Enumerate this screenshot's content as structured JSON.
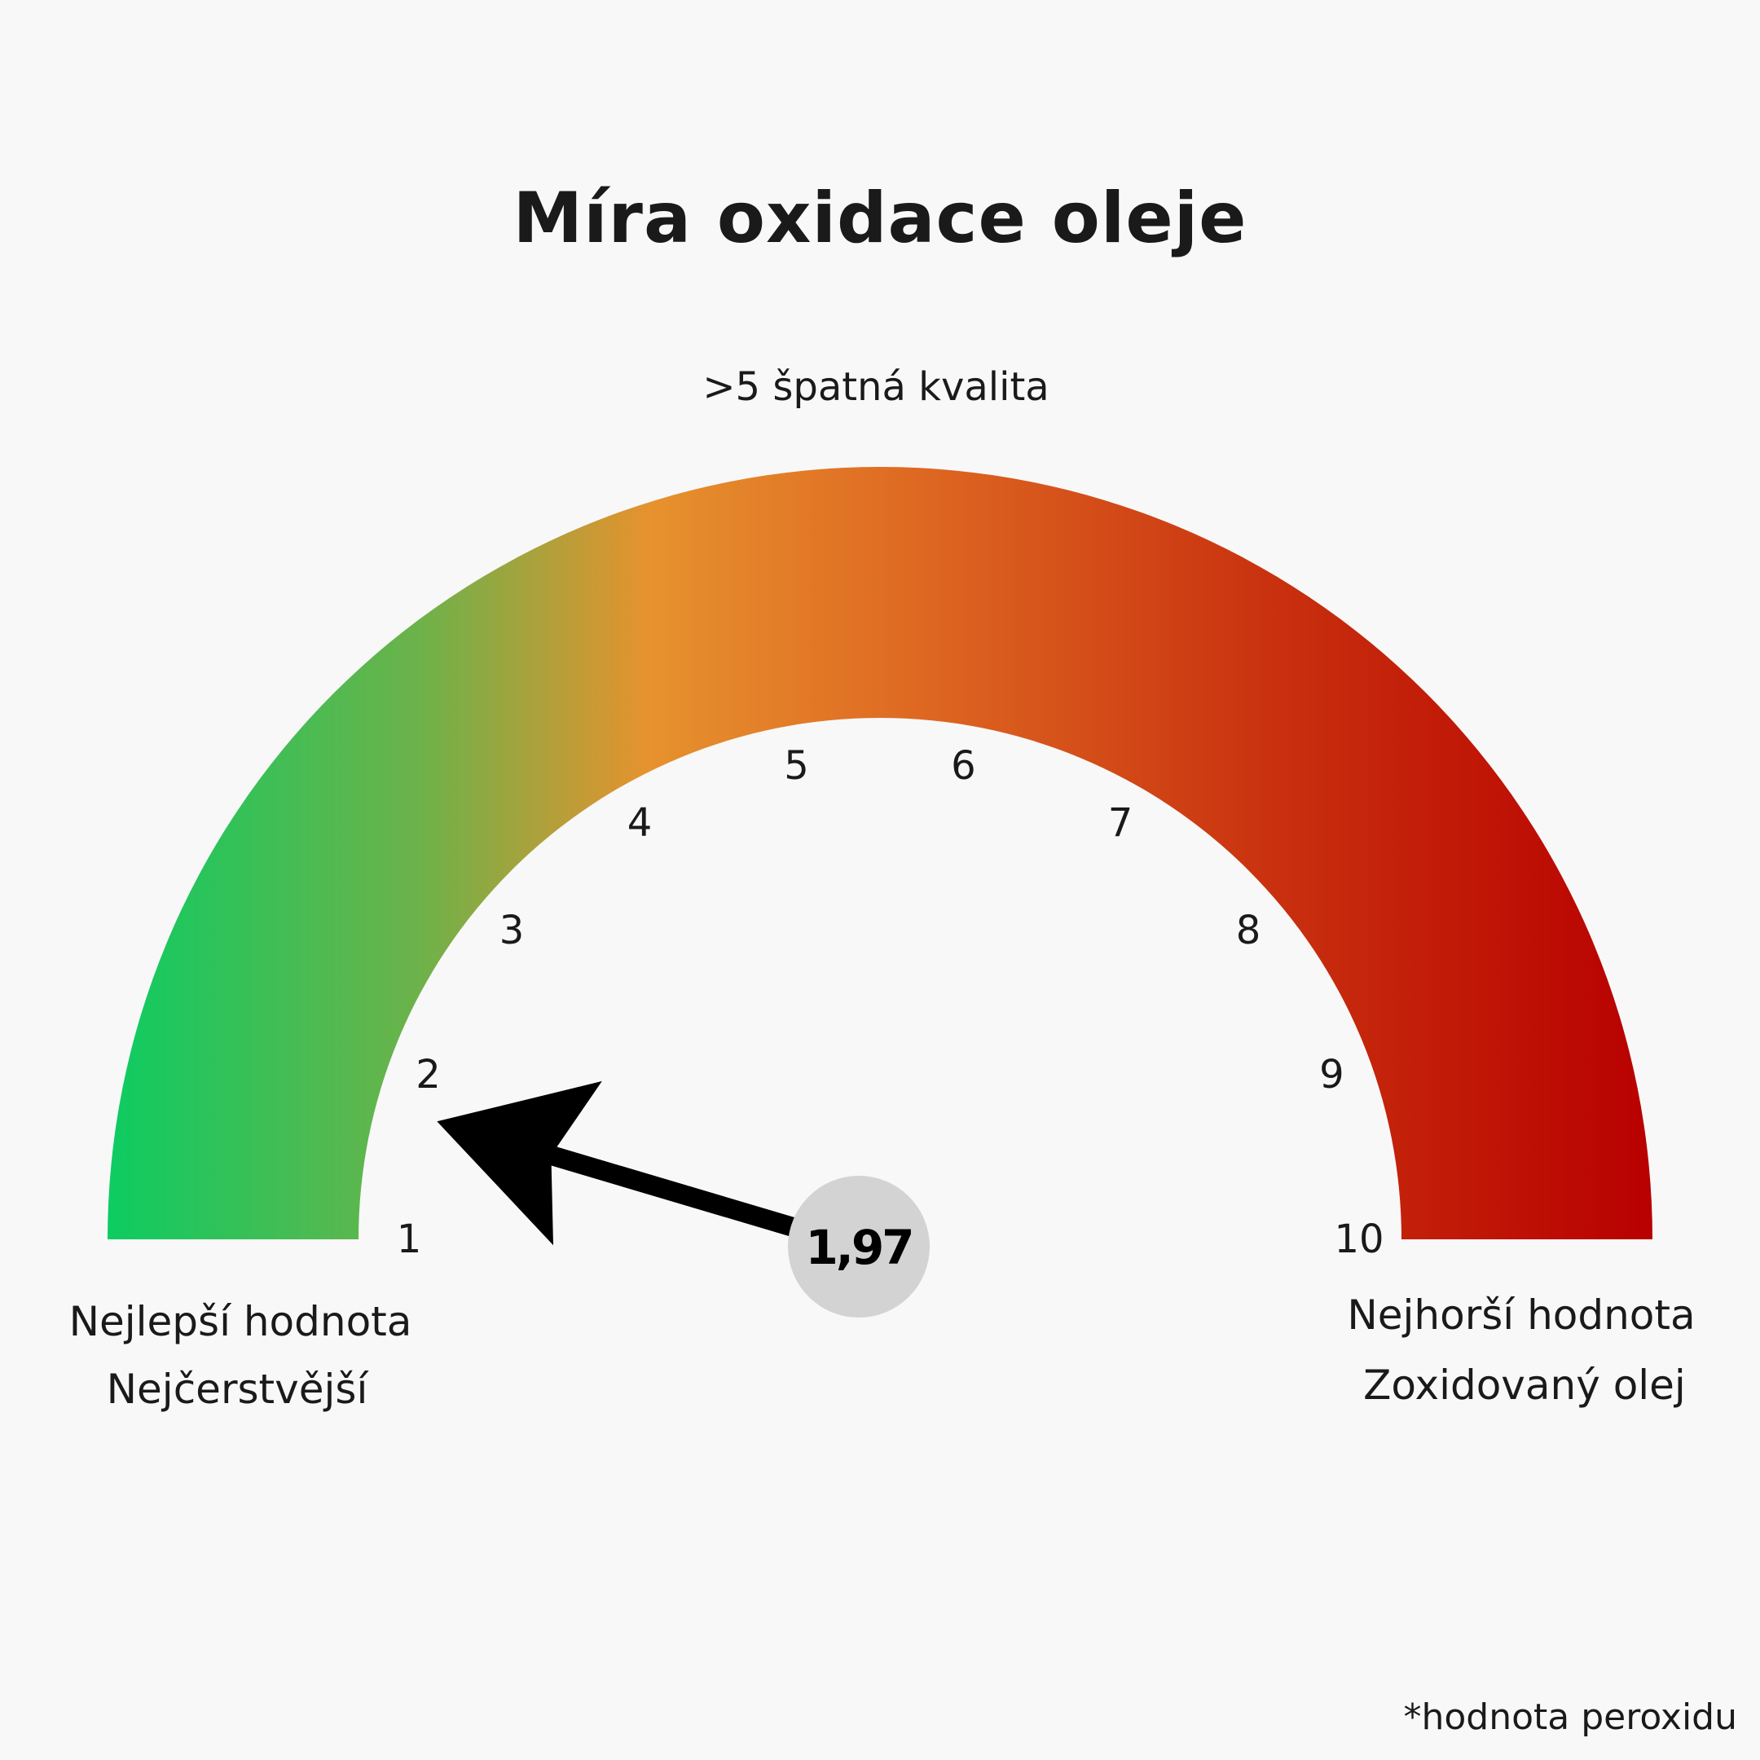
{
  "title": "Míra oxidace oleje",
  "subtitle": ">5 špatná kvalita",
  "left_labels": [
    "Nejlepší hodnota",
    "Nejčerstvější"
  ],
  "right_labels": [
    "Nejhorší hodnota",
    "Zoxidovaný olej"
  ],
  "footnote": "*hodnota peroxidu",
  "chart_data": {
    "type": "gauge",
    "title": "Míra oxidace oleje",
    "min": 1,
    "max": 10,
    "ticks": [
      "1",
      "2",
      "3",
      "4",
      "5",
      "6",
      "7",
      "8",
      "9",
      "10"
    ],
    "value": 1.97,
    "value_label": "1,97",
    "gradient_colors": [
      "#0dcc62",
      "#6cb24a",
      "#e6922e",
      "#e06e24",
      "#c9320f",
      "#b80000"
    ]
  }
}
